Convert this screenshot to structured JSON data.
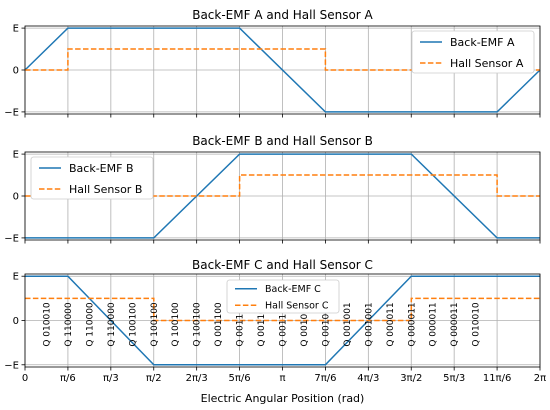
{
  "figure": {
    "xlabel": "Electric Angular Position (rad)",
    "xticks": [
      "0",
      "π/6",
      "π/3",
      "π/2",
      "2π/3",
      "5π/6",
      "π",
      "7π/6",
      "4π/3",
      "3π/2",
      "5π/3",
      "11π/6",
      "2π"
    ],
    "yticks": [
      "−E",
      "0",
      "E"
    ]
  },
  "colors": {
    "emf": "#1f77b4",
    "hall": "#ff7f0e"
  },
  "chart_data": [
    {
      "type": "line",
      "title": "Back-EMF A and Hall Sensor A",
      "xlabel": "",
      "ylabel": "",
      "x_unit": "π/6",
      "xlim": [
        0,
        12
      ],
      "ylim": [
        -1.05,
        1.05
      ],
      "grid": true,
      "legend_position": "top-right",
      "series": [
        {
          "name": "Back-EMF A",
          "style": "solid",
          "x": [
            0,
            1,
            5,
            7,
            11,
            12
          ],
          "y": [
            0,
            1,
            1,
            -1,
            -1,
            0
          ]
        },
        {
          "name": "Hall Sensor A",
          "style": "dashed",
          "x": [
            0,
            1,
            1,
            7,
            7,
            12
          ],
          "y": [
            0,
            0,
            0.5,
            0.5,
            0,
            0
          ]
        }
      ]
    },
    {
      "type": "line",
      "title": "Back-EMF B and Hall Sensor B",
      "xlabel": "",
      "ylabel": "",
      "x_unit": "π/6",
      "xlim": [
        0,
        12
      ],
      "ylim": [
        -1.05,
        1.05
      ],
      "grid": true,
      "legend_position": "top-left",
      "series": [
        {
          "name": "Back-EMF B",
          "style": "solid",
          "x": [
            0,
            3,
            5,
            9,
            11,
            12
          ],
          "y": [
            -1,
            -1,
            1,
            1,
            -1,
            -1
          ]
        },
        {
          "name": "Hall Sensor B",
          "style": "dashed",
          "x": [
            0,
            5,
            5,
            11,
            11,
            12
          ],
          "y": [
            0,
            0,
            0.5,
            0.5,
            0,
            0
          ]
        }
      ]
    },
    {
      "type": "line",
      "title": "Back-EMF C and Hall Sensor C",
      "xlabel": "Electric Angular Position (rad)",
      "ylabel": "",
      "x_unit": "π/6",
      "xlim": [
        0,
        12
      ],
      "ylim": [
        -1.05,
        1.05
      ],
      "grid": true,
      "legend_position": "top-center",
      "series": [
        {
          "name": "Back-EMF C",
          "style": "solid",
          "x": [
            0,
            1,
            3,
            7,
            9,
            12
          ],
          "y": [
            1,
            1,
            -1,
            -1,
            1,
            1
          ]
        },
        {
          "name": "Hall Sensor C",
          "style": "dashed",
          "x": [
            0,
            3,
            3,
            9,
            9,
            12
          ],
          "y": [
            0.5,
            0.5,
            0,
            0,
            0.5,
            0.5
          ]
        }
      ],
      "annotations": [
        {
          "x": 0.5,
          "text": "Q 010010"
        },
        {
          "x": 1.0,
          "text": "Q 110000"
        },
        {
          "x": 1.5,
          "text": "Q 110000"
        },
        {
          "x": 2.0,
          "text": "Q 110000"
        },
        {
          "x": 2.5,
          "text": "Q 100100"
        },
        {
          "x": 3.0,
          "text": "Q 100100"
        },
        {
          "x": 3.5,
          "text": "Q 100100"
        },
        {
          "x": 4.0,
          "text": "Q 100100"
        },
        {
          "x": 4.5,
          "text": "Q 001100"
        },
        {
          "x": 5.0,
          "text": "Q 001100"
        },
        {
          "x": 5.5,
          "text": "Q 001100"
        },
        {
          "x": 6.0,
          "text": "Q 001100"
        },
        {
          "x": 6.5,
          "text": "Q 001001"
        },
        {
          "x": 7.0,
          "text": "Q 001001"
        },
        {
          "x": 7.5,
          "text": "Q 001001"
        },
        {
          "x": 8.0,
          "text": "Q 001001"
        },
        {
          "x": 8.5,
          "text": "Q 000011"
        },
        {
          "x": 9.0,
          "text": "Q 000011"
        },
        {
          "x": 9.5,
          "text": "Q 000011"
        },
        {
          "x": 10.0,
          "text": "Q 000011"
        },
        {
          "x": 10.5,
          "text": "Q 010010"
        }
      ]
    }
  ]
}
